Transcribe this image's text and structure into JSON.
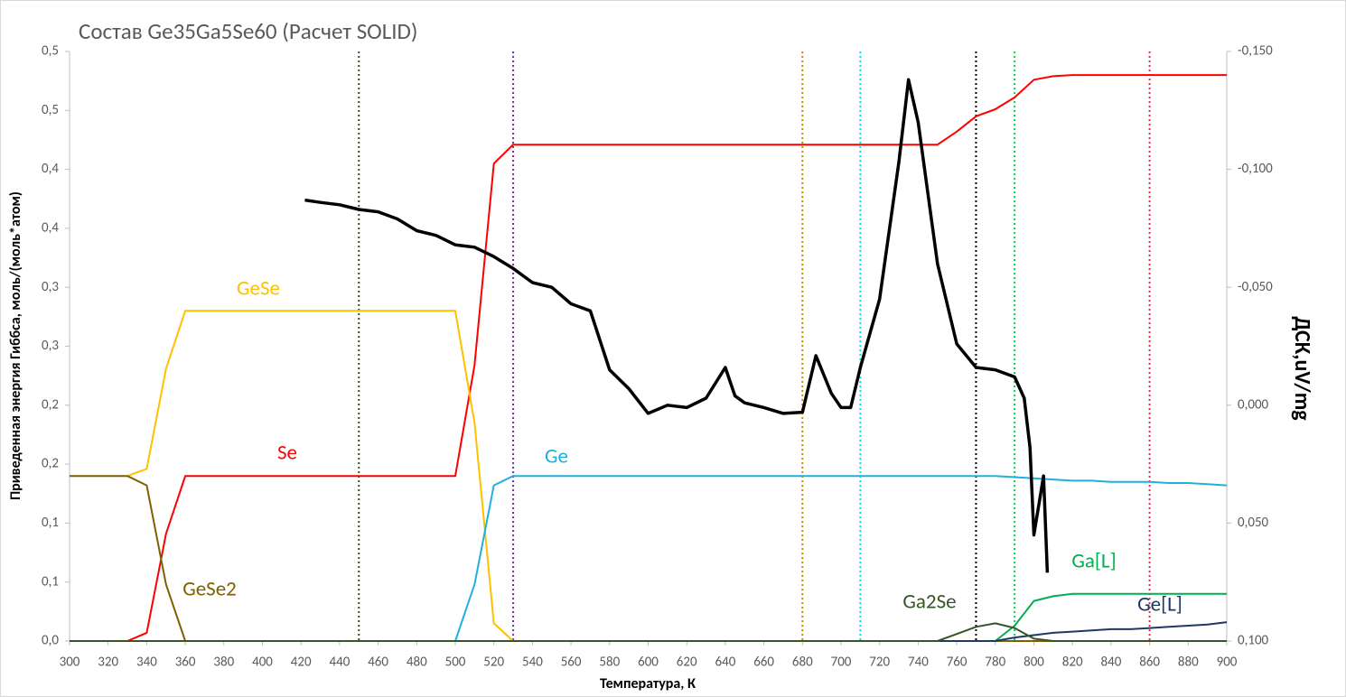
{
  "chart_data": {
    "type": "line",
    "title": "Состав Ge35Ga5Se60 (Расчет SOLID)",
    "x_label": "Температура, К",
    "y_label": "Приведенная энергия Гиббса, моль/(моль*атом)",
    "y2_label": "ДСК,uV/mg",
    "xlim": [
      300,
      900
    ],
    "ylim": [
      0,
      0.5
    ],
    "y2lim": [
      0.1,
      -0.15
    ],
    "xticks": [
      300,
      320,
      340,
      360,
      380,
      400,
      420,
      440,
      460,
      480,
      500,
      520,
      540,
      560,
      580,
      600,
      620,
      640,
      660,
      680,
      700,
      720,
      740,
      760,
      780,
      800,
      820,
      840,
      860,
      880,
      900
    ],
    "yticks": [
      {
        "value": 0,
        "label": "0,0"
      },
      {
        "value": 0.05,
        "label": "0,1"
      },
      {
        "value": 0.1,
        "label": "0,1"
      },
      {
        "value": 0.15,
        "label": "0,2"
      },
      {
        "value": 0.2,
        "label": "0,2"
      },
      {
        "value": 0.25,
        "label": "0,3"
      },
      {
        "value": 0.3,
        "label": "0,3"
      },
      {
        "value": 0.35,
        "label": "0,4"
      },
      {
        "value": 0.4,
        "label": "0,4"
      },
      {
        "value": 0.45,
        "label": "0,5"
      },
      {
        "value": 0.5,
        "label": "0,5"
      }
    ],
    "y2ticks": [
      {
        "value": -0.15,
        "label": "-0,150"
      },
      {
        "value": -0.1,
        "label": "-0,100"
      },
      {
        "value": -0.05,
        "label": "-0,050"
      },
      {
        "value": 0,
        "label": "0,000"
      },
      {
        "value": 0.05,
        "label": "0,050"
      },
      {
        "value": 0.1,
        "label": "0,100"
      }
    ],
    "vlines": [
      {
        "x": 450,
        "color": "#375623"
      },
      {
        "x": 530,
        "color": "#7030a0"
      },
      {
        "x": 680,
        "color": "#bf9000"
      },
      {
        "x": 710,
        "color": "#00e0f0"
      },
      {
        "x": 770,
        "color": "#000000"
      },
      {
        "x": 790,
        "color": "#00d050"
      },
      {
        "x": 860,
        "color": "#e03050"
      }
    ],
    "x": [
      300,
      310,
      320,
      330,
      340,
      350,
      360,
      370,
      380,
      390,
      400,
      410,
      420,
      430,
      440,
      450,
      460,
      470,
      480,
      490,
      500,
      510,
      520,
      530,
      540,
      550,
      560,
      570,
      580,
      590,
      600,
      610,
      620,
      630,
      640,
      650,
      660,
      670,
      680,
      690,
      700,
      710,
      720,
      730,
      740,
      750,
      760,
      770,
      780,
      790,
      800,
      810,
      820,
      830,
      840,
      850,
      860,
      870,
      880,
      890,
      900
    ],
    "series": [
      {
        "name": "Se",
        "color": "#ff0000",
        "values": [
          0,
          0,
          0,
          0,
          0.007,
          0.091,
          0.14,
          0.14,
          0.14,
          0.14,
          0.14,
          0.14,
          0.14,
          0.14,
          0.14,
          0.14,
          0.14,
          0.14,
          0.14,
          0.14,
          0.14,
          0.234,
          0.405,
          0.421,
          0.421,
          0.421,
          0.421,
          0.421,
          0.421,
          0.421,
          0.421,
          0.421,
          0.421,
          0.421,
          0.421,
          0.421,
          0.421,
          0.421,
          0.421,
          0.421,
          0.421,
          0.421,
          0.421,
          0.421,
          0.421,
          0.421,
          0.432,
          0.445,
          0.451,
          0.461,
          0.476,
          0.479,
          0.48,
          0.48,
          0.48,
          0.48,
          0.48,
          0.48,
          0.48,
          0.48,
          0.48
        ]
      },
      {
        "name": "GeSe",
        "color": "#ffc000",
        "values": [
          null,
          null,
          null,
          0.14,
          0.146,
          0.231,
          0.28,
          0.28,
          0.28,
          0.28,
          0.28,
          0.28,
          0.28,
          0.28,
          0.28,
          0.28,
          0.28,
          0.28,
          0.28,
          0.28,
          0.28,
          0.185,
          0.015,
          0,
          0,
          0,
          0,
          0,
          0,
          0,
          0,
          0,
          0,
          0,
          0,
          0,
          0,
          0,
          0,
          0,
          0,
          0,
          0,
          0,
          0,
          0,
          0,
          0,
          0,
          0,
          0,
          0,
          0,
          0,
          0,
          0,
          0,
          0,
          0,
          0,
          0
        ]
      },
      {
        "name": "GeSe2",
        "color": "#7f6000",
        "values": [
          0.14,
          0.14,
          0.14,
          0.14,
          0.132,
          0.048,
          0,
          0,
          0,
          0,
          0,
          0,
          0,
          0,
          0,
          0,
          0,
          0,
          0,
          0,
          0,
          0,
          0,
          0,
          0,
          0,
          0,
          0,
          0,
          0,
          0,
          0,
          0,
          0,
          0,
          0,
          0,
          0,
          0,
          0,
          0,
          0,
          0,
          0,
          0,
          0,
          0,
          0,
          0,
          0,
          0,
          0,
          0,
          0,
          0,
          0,
          0,
          0,
          0,
          0,
          0
        ]
      },
      {
        "name": "Ge",
        "color": "#1fb0e0",
        "values": [
          0,
          0,
          0,
          0,
          0,
          0,
          0,
          0,
          0,
          0,
          0,
          0,
          0,
          0,
          0,
          0,
          0,
          0,
          0,
          0,
          0,
          0.048,
          0.132,
          0.14,
          0.14,
          0.14,
          0.14,
          0.14,
          0.14,
          0.14,
          0.14,
          0.14,
          0.14,
          0.14,
          0.14,
          0.14,
          0.14,
          0.14,
          0.14,
          0.14,
          0.14,
          0.14,
          0.14,
          0.14,
          0.14,
          0.14,
          0.14,
          0.14,
          0.14,
          0.139,
          0.138,
          0.137,
          0.136,
          0.136,
          0.135,
          0.135,
          0.135,
          0.134,
          0.134,
          0.133,
          0.132
        ]
      },
      {
        "name": "Ga[L]",
        "color": "#00b050",
        "values": [
          0,
          0,
          0,
          0,
          0,
          0,
          0,
          0,
          0,
          0,
          0,
          0,
          0,
          0,
          0,
          0,
          0,
          0,
          0,
          0,
          0,
          0,
          0,
          0,
          0,
          0,
          0,
          0,
          0,
          0,
          0,
          0,
          0,
          0,
          0,
          0,
          0,
          0,
          0,
          0,
          0,
          0,
          0,
          0,
          0,
          0,
          0,
          0,
          0,
          0.013,
          0.034,
          0.038,
          0.04,
          0.04,
          0.04,
          0.04,
          0.04,
          0.04,
          0.04,
          0.04,
          0.04
        ]
      },
      {
        "name": "Ge[L]",
        "color": "#1f3864",
        "values": [
          0,
          0,
          0,
          0,
          0,
          0,
          0,
          0,
          0,
          0,
          0,
          0,
          0,
          0,
          0,
          0,
          0,
          0,
          0,
          0,
          0,
          0,
          0,
          0,
          0,
          0,
          0,
          0,
          0,
          0,
          0,
          0,
          0,
          0,
          0,
          0,
          0,
          0,
          0,
          0,
          0,
          0,
          0,
          0,
          0,
          0,
          0,
          0,
          0,
          0.003,
          0.005,
          0.007,
          0.008,
          0.009,
          0.01,
          0.01,
          0.011,
          0.012,
          0.013,
          0.014,
          0.016
        ]
      },
      {
        "name": "Ga2Se",
        "color": "#375623",
        "values": [
          0,
          0,
          0,
          0,
          0,
          0,
          0,
          0,
          0,
          0,
          0,
          0,
          0,
          0,
          0,
          0,
          0,
          0,
          0,
          0,
          0,
          0,
          0,
          0,
          0,
          0,
          0,
          0,
          0,
          0,
          0,
          0,
          0,
          0,
          0,
          0,
          0,
          0,
          0,
          0,
          0,
          0,
          0,
          0,
          0,
          0,
          0.006,
          0.012,
          0.015,
          0.011,
          0.002,
          0,
          0,
          0,
          0,
          0,
          0,
          0,
          0,
          0,
          0
        ]
      },
      {
        "color": "#000000",
        "axis": "y2",
        "x": [
          422,
          430,
          440,
          450,
          460,
          470,
          480,
          490,
          500,
          510,
          520,
          530,
          540,
          550,
          560,
          570,
          580,
          590,
          600,
          610,
          620,
          630,
          640,
          645,
          650,
          660,
          670,
          680,
          687,
          695,
          700,
          705,
          710,
          720,
          730,
          735,
          740,
          750,
          760,
          770,
          780,
          790,
          795,
          798,
          800,
          805,
          807
        ],
        "values": [
          -0.087,
          -0.086,
          -0.085,
          -0.083,
          -0.082,
          -0.079,
          -0.074,
          -0.072,
          -0.068,
          -0.067,
          -0.063,
          -0.058,
          -0.052,
          -0.05,
          -0.043,
          -0.04,
          -0.015,
          -0.007,
          0.0035,
          0,
          0.001,
          -0.003,
          -0.016,
          -0.004,
          -0.001,
          0.001,
          0.0035,
          0.003,
          -0.021,
          -0.005,
          0.001,
          0.001,
          -0.016,
          -0.045,
          -0.103,
          -0.138,
          -0.12,
          -0.06,
          -0.026,
          -0.016,
          -0.015,
          -0.012,
          -0.003,
          0.018,
          0.055,
          0.03,
          0.071
        ]
      }
    ]
  }
}
